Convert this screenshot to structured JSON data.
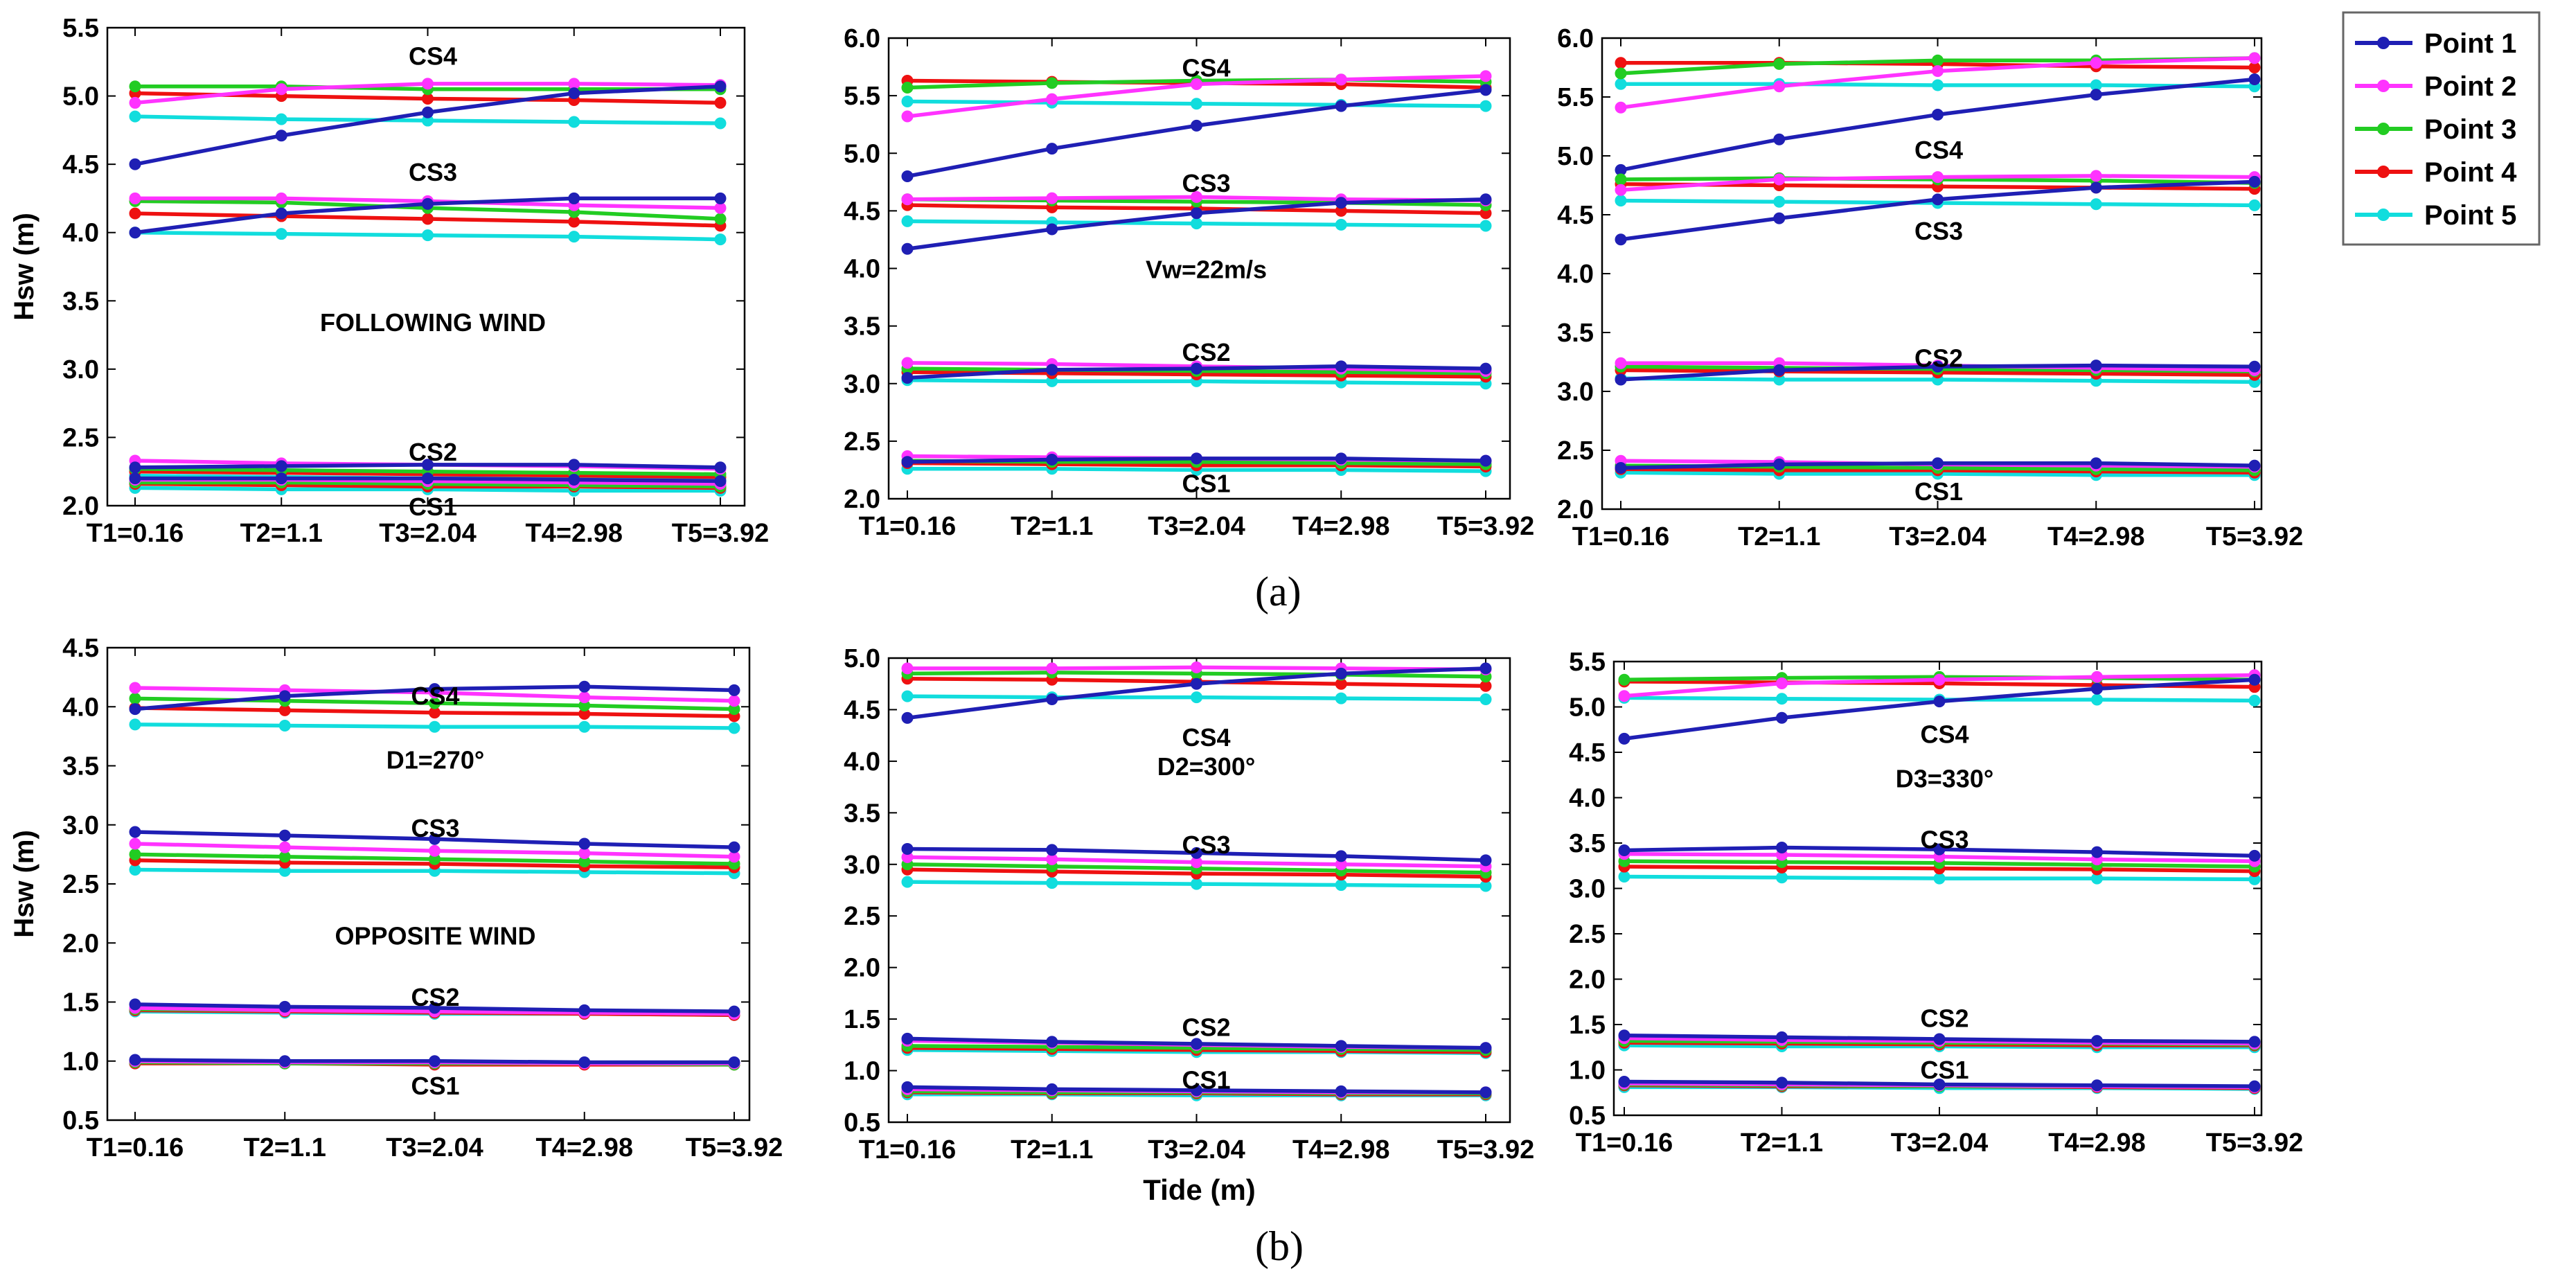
{
  "x_categories": [
    "T1=0.16",
    "T2=1.1",
    "T3=2.04",
    "T4=2.98",
    "T5=3.92"
  ],
  "legend": [
    {
      "name": "Point 1",
      "color": "#1f1fb4"
    },
    {
      "name": "Point 2",
      "color": "#ff33ff"
    },
    {
      "name": "Point 3",
      "color": "#22cc22"
    },
    {
      "name": "Point 4",
      "color": "#ee1111"
    },
    {
      "name": "Point 5",
      "color": "#11dddd"
    }
  ],
  "captions": {
    "a": "(a)",
    "b": "(b)"
  },
  "chart_data": [
    {
      "type": "line",
      "ylabel": "Hsw (m)",
      "xlabel": "",
      "ylim": [
        2.0,
        5.5
      ],
      "yticks": [
        "2.0",
        "2.5",
        "3.0",
        "3.5",
        "4.0",
        "4.5",
        "5.0",
        "5.5"
      ],
      "note": "FOLLOWING WIND",
      "groups": [
        {
          "label": "CS4",
          "series": [
            [
              4.5,
              4.71,
              4.88,
              5.02,
              5.07
            ],
            [
              4.95,
              5.05,
              5.09,
              5.09,
              5.08
            ],
            [
              5.07,
              5.07,
              5.05,
              5.05,
              5.05
            ],
            [
              5.02,
              5.0,
              4.98,
              4.97,
              4.95
            ],
            [
              4.85,
              4.83,
              4.82,
              4.81,
              4.8
            ]
          ]
        },
        {
          "label": "CS3",
          "series": [
            [
              4.0,
              4.14,
              4.21,
              4.25,
              4.25
            ],
            [
              4.25,
              4.25,
              4.23,
              4.2,
              4.18
            ],
            [
              4.23,
              4.22,
              4.18,
              4.15,
              4.1
            ],
            [
              4.14,
              4.12,
              4.1,
              4.08,
              4.05
            ],
            [
              4.0,
              3.99,
              3.98,
              3.97,
              3.95
            ]
          ]
        },
        {
          "label": "CS2",
          "series": [
            [
              2.28,
              2.29,
              2.3,
              2.3,
              2.28
            ],
            [
              2.33,
              2.31,
              2.3,
              2.29,
              2.27
            ],
            [
              2.27,
              2.26,
              2.25,
              2.24,
              2.23
            ],
            [
              2.25,
              2.24,
              2.23,
              2.22,
              2.21
            ],
            [
              2.22,
              2.21,
              2.2,
              2.2,
              2.19
            ]
          ]
        },
        {
          "label": "CS1",
          "series": [
            [
              2.2,
              2.2,
              2.2,
              2.19,
              2.18
            ],
            [
              2.19,
              2.19,
              2.18,
              2.17,
              2.16
            ],
            [
              2.17,
              2.17,
              2.16,
              2.15,
              2.14
            ],
            [
              2.16,
              2.15,
              2.14,
              2.14,
              2.13
            ],
            [
              2.13,
              2.12,
              2.12,
              2.11,
              2.11
            ]
          ]
        }
      ]
    },
    {
      "type": "line",
      "ylabel": "",
      "xlabel": "",
      "ylim": [
        2.0,
        6.0
      ],
      "yticks": [
        "2.0",
        "2.5",
        "3.0",
        "3.5",
        "4.0",
        "4.5",
        "5.0",
        "5.5",
        "6.0"
      ],
      "note": "Vw=22m/s",
      "groups": [
        {
          "label": "CS4",
          "series": [
            [
              4.8,
              5.04,
              5.24,
              5.41,
              5.55
            ],
            [
              5.32,
              5.47,
              5.6,
              5.64,
              5.67
            ],
            [
              5.57,
              5.61,
              5.63,
              5.64,
              5.62
            ],
            [
              5.63,
              5.62,
              5.61,
              5.6,
              5.57
            ],
            [
              5.45,
              5.44,
              5.43,
              5.42,
              5.41
            ]
          ]
        },
        {
          "label": "CS3",
          "series": [
            [
              4.17,
              4.34,
              4.48,
              4.57,
              4.6
            ],
            [
              4.6,
              4.61,
              4.62,
              4.6,
              4.59
            ],
            [
              4.6,
              4.59,
              4.58,
              4.57,
              4.55
            ],
            [
              4.55,
              4.53,
              4.52,
              4.5,
              4.48
            ],
            [
              4.41,
              4.4,
              4.39,
              4.38,
              4.37
            ]
          ]
        },
        {
          "label": "CS2",
          "series": [
            [
              3.05,
              3.12,
              3.13,
              3.15,
              3.13
            ],
            [
              3.18,
              3.17,
              3.15,
              3.13,
              3.11
            ],
            [
              3.13,
              3.12,
              3.11,
              3.1,
              3.09
            ],
            [
              3.1,
              3.09,
              3.08,
              3.07,
              3.06
            ],
            [
              3.03,
              3.02,
              3.02,
              3.01,
              3.0
            ]
          ]
        },
        {
          "label": "CS1",
          "series": [
            [
              2.32,
              2.34,
              2.35,
              2.35,
              2.33
            ],
            [
              2.37,
              2.36,
              2.35,
              2.34,
              2.33
            ],
            [
              2.33,
              2.32,
              2.32,
              2.31,
              2.3
            ],
            [
              2.31,
              2.3,
              2.29,
              2.29,
              2.28
            ],
            [
              2.26,
              2.26,
              2.25,
              2.25,
              2.24
            ]
          ]
        }
      ]
    },
    {
      "type": "line",
      "ylabel": "",
      "xlabel": "",
      "ylim": [
        2.0,
        6.0
      ],
      "yticks": [
        "2.0",
        "2.5",
        "3.0",
        "3.5",
        "4.0",
        "4.5",
        "5.0",
        "5.5",
        "6.0"
      ],
      "note": "",
      "groups": [
        {
          "label": "CS4",
          "series": [
            [
              4.88,
              5.14,
              5.35,
              5.52,
              5.65
            ],
            [
              5.41,
              5.59,
              5.72,
              5.79,
              5.83
            ],
            [
              5.7,
              5.78,
              5.81,
              5.81,
              5.83
            ],
            [
              5.79,
              5.79,
              5.78,
              5.76,
              5.75
            ],
            [
              5.61,
              5.61,
              5.6,
              5.6,
              5.59
            ]
          ]
        },
        {
          "label": "CS3",
          "series": [
            [
              4.29,
              4.47,
              4.63,
              4.73,
              4.78
            ],
            [
              4.71,
              4.8,
              4.82,
              4.83,
              4.82
            ],
            [
              4.8,
              4.81,
              4.8,
              4.79,
              4.77
            ],
            [
              4.76,
              4.75,
              4.74,
              4.73,
              4.72
            ],
            [
              4.62,
              4.61,
              4.6,
              4.59,
              4.58
            ]
          ]
        },
        {
          "label": "CS2",
          "series": [
            [
              3.1,
              3.18,
              3.21,
              3.22,
              3.21
            ],
            [
              3.24,
              3.24,
              3.22,
              3.2,
              3.18
            ],
            [
              3.21,
              3.2,
              3.19,
              3.18,
              3.17
            ],
            [
              3.18,
              3.17,
              3.16,
              3.15,
              3.14
            ],
            [
              3.11,
              3.1,
              3.1,
              3.09,
              3.08
            ]
          ]
        },
        {
          "label": "CS1",
          "series": [
            [
              2.35,
              2.38,
              2.39,
              2.39,
              2.37
            ],
            [
              2.41,
              2.4,
              2.38,
              2.37,
              2.36
            ],
            [
              2.37,
              2.36,
              2.35,
              2.34,
              2.33
            ],
            [
              2.34,
              2.33,
              2.33,
              2.32,
              2.31
            ],
            [
              2.31,
              2.3,
              2.3,
              2.29,
              2.29
            ]
          ]
        }
      ]
    },
    {
      "type": "line",
      "ylabel": "Hsw (m)",
      "xlabel": "",
      "ylim": [
        0.5,
        4.5
      ],
      "yticks": [
        "0.5",
        "1.0",
        "1.5",
        "2.0",
        "2.5",
        "3.0",
        "3.5",
        "4.0",
        "4.5"
      ],
      "note": "D1=270°",
      "note2": "OPPOSITE WIND",
      "groups": [
        {
          "label": "CS4",
          "series": [
            [
              3.98,
              4.09,
              4.15,
              4.17,
              4.14
            ],
            [
              4.16,
              4.14,
              4.12,
              4.08,
              4.05
            ],
            [
              4.07,
              4.05,
              4.03,
              4.01,
              3.98
            ],
            [
              3.99,
              3.97,
              3.95,
              3.94,
              3.92
            ],
            [
              3.85,
              3.84,
              3.83,
              3.83,
              3.82
            ]
          ]
        },
        {
          "label": "CS3",
          "series": [
            [
              2.94,
              2.91,
              2.88,
              2.84,
              2.81
            ],
            [
              2.84,
              2.81,
              2.78,
              2.76,
              2.73
            ],
            [
              2.75,
              2.73,
              2.71,
              2.69,
              2.67
            ],
            [
              2.7,
              2.68,
              2.67,
              2.65,
              2.64
            ],
            [
              2.62,
              2.61,
              2.61,
              2.6,
              2.59
            ]
          ]
        },
        {
          "label": "CS2",
          "series": [
            [
              1.48,
              1.46,
              1.45,
              1.43,
              1.42
            ],
            [
              1.45,
              1.43,
              1.42,
              1.41,
              1.4
            ],
            [
              1.44,
              1.43,
              1.42,
              1.41,
              1.4
            ],
            [
              1.43,
              1.42,
              1.41,
              1.4,
              1.39
            ],
            [
              1.42,
              1.41,
              1.4,
              1.4,
              1.39
            ]
          ]
        },
        {
          "label": "CS1",
          "series": [
            [
              1.01,
              1.0,
              1.0,
              0.99,
              0.99
            ],
            [
              1.0,
              0.99,
              0.99,
              0.98,
              0.98
            ],
            [
              0.99,
              0.98,
              0.98,
              0.98,
              0.97
            ],
            [
              0.98,
              0.98,
              0.97,
              0.97,
              0.97
            ],
            [
              0.99,
              0.98,
              0.98,
              0.98,
              0.98
            ]
          ]
        }
      ]
    },
    {
      "type": "line",
      "ylabel": "",
      "xlabel": "Tide (m)",
      "ylim": [
        0.5,
        5.0
      ],
      "yticks": [
        "0.5",
        "1.0",
        "1.5",
        "2.0",
        "2.5",
        "3.0",
        "3.5",
        "4.0",
        "4.5",
        "5.0"
      ],
      "note": "D2=300°",
      "groups": [
        {
          "label": "CS4",
          "series": [
            [
              4.42,
              4.6,
              4.75,
              4.85,
              4.9
            ],
            [
              4.9,
              4.9,
              4.91,
              4.9,
              4.89
            ],
            [
              4.85,
              4.86,
              4.85,
              4.84,
              4.82
            ],
            [
              4.8,
              4.79,
              4.77,
              4.75,
              4.73
            ],
            [
              4.63,
              4.62,
              4.62,
              4.61,
              4.6
            ]
          ]
        },
        {
          "label": "CS3",
          "series": [
            [
              3.15,
              3.14,
              3.11,
              3.08,
              3.04
            ],
            [
              3.07,
              3.05,
              3.02,
              3.0,
              2.98
            ],
            [
              3.0,
              2.98,
              2.96,
              2.94,
              2.92
            ],
            [
              2.95,
              2.93,
              2.91,
              2.9,
              2.88
            ],
            [
              2.83,
              2.82,
              2.81,
              2.8,
              2.79
            ]
          ]
        },
        {
          "label": "CS2",
          "series": [
            [
              1.31,
              1.28,
              1.26,
              1.24,
              1.22
            ],
            [
              1.29,
              1.27,
              1.25,
              1.23,
              1.22
            ],
            [
              1.24,
              1.23,
              1.22,
              1.21,
              1.2
            ],
            [
              1.22,
              1.21,
              1.2,
              1.19,
              1.18
            ],
            [
              1.2,
              1.19,
              1.18,
              1.18,
              1.17
            ]
          ]
        },
        {
          "label": "CS1",
          "series": [
            [
              0.84,
              0.82,
              0.81,
              0.8,
              0.79
            ],
            [
              0.82,
              0.81,
              0.8,
              0.79,
              0.79
            ],
            [
              0.8,
              0.79,
              0.79,
              0.78,
              0.78
            ],
            [
              0.79,
              0.78,
              0.78,
              0.77,
              0.77
            ],
            [
              0.77,
              0.77,
              0.76,
              0.76,
              0.76
            ]
          ]
        }
      ]
    },
    {
      "type": "line",
      "ylabel": "",
      "xlabel": "",
      "ylim": [
        0.5,
        5.5
      ],
      "yticks": [
        "0.5",
        "1.0",
        "1.5",
        "2.0",
        "2.5",
        "3.0",
        "3.5",
        "4.0",
        "4.5",
        "5.0",
        "5.5"
      ],
      "note": "D3=330°",
      "groups": [
        {
          "label": "CS4",
          "series": [
            [
              4.65,
              4.88,
              5.06,
              5.2,
              5.3
            ],
            [
              5.12,
              5.26,
              5.3,
              5.33,
              5.35
            ],
            [
              5.3,
              5.32,
              5.33,
              5.32,
              5.3
            ],
            [
              5.28,
              5.27,
              5.26,
              5.24,
              5.22
            ],
            [
              5.1,
              5.09,
              5.08,
              5.08,
              5.07
            ]
          ]
        },
        {
          "label": "CS3",
          "series": [
            [
              3.42,
              3.45,
              3.43,
              3.4,
              3.36
            ],
            [
              3.38,
              3.37,
              3.35,
              3.32,
              3.3
            ],
            [
              3.3,
              3.29,
              3.28,
              3.26,
              3.24
            ],
            [
              3.24,
              3.23,
              3.22,
              3.21,
              3.19
            ],
            [
              3.13,
              3.12,
              3.11,
              3.11,
              3.1
            ]
          ]
        },
        {
          "label": "CS2",
          "series": [
            [
              1.38,
              1.36,
              1.34,
              1.32,
              1.31
            ],
            [
              1.35,
              1.33,
              1.32,
              1.3,
              1.29
            ],
            [
              1.32,
              1.31,
              1.3,
              1.29,
              1.28
            ],
            [
              1.3,
              1.29,
              1.28,
              1.27,
              1.27
            ],
            [
              1.27,
              1.26,
              1.26,
              1.25,
              1.25
            ]
          ]
        },
        {
          "label": "CS1",
          "series": [
            [
              0.87,
              0.86,
              0.84,
              0.83,
              0.82
            ],
            [
              0.85,
              0.84,
              0.83,
              0.82,
              0.81
            ],
            [
              0.84,
              0.83,
              0.82,
              0.82,
              0.81
            ],
            [
              0.83,
              0.82,
              0.82,
              0.81,
              0.8
            ],
            [
              0.81,
              0.81,
              0.8,
              0.8,
              0.79
            ]
          ]
        }
      ]
    }
  ]
}
